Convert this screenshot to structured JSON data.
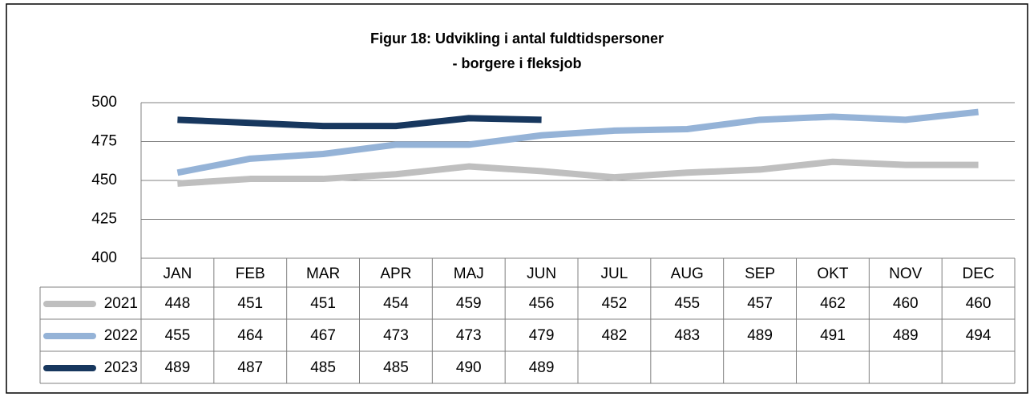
{
  "chart_data": {
    "type": "line",
    "title": [
      "Figur 18: Udvikling i antal fuldtidspersoner",
      "- borgere i fleksjob"
    ],
    "categories": [
      "JAN",
      "FEB",
      "MAR",
      "APR",
      "MAJ",
      "JUN",
      "JUL",
      "AUG",
      "SEP",
      "OKT",
      "NOV",
      "DEC"
    ],
    "series": [
      {
        "name": "2021",
        "color": "#bfbfbf",
        "values": [
          448,
          451,
          451,
          454,
          459,
          456,
          452,
          455,
          457,
          462,
          460,
          460
        ]
      },
      {
        "name": "2022",
        "color": "#95b3d7",
        "values": [
          455,
          464,
          467,
          473,
          473,
          479,
          482,
          483,
          489,
          491,
          489,
          494
        ]
      },
      {
        "name": "2023",
        "color": "#17375e",
        "values": [
          489,
          487,
          485,
          485,
          490,
          489,
          null,
          null,
          null,
          null,
          null,
          null
        ]
      }
    ],
    "ylim": [
      400,
      500
    ],
    "yticks": [
      400,
      425,
      450,
      475,
      500
    ],
    "grid": true
  }
}
